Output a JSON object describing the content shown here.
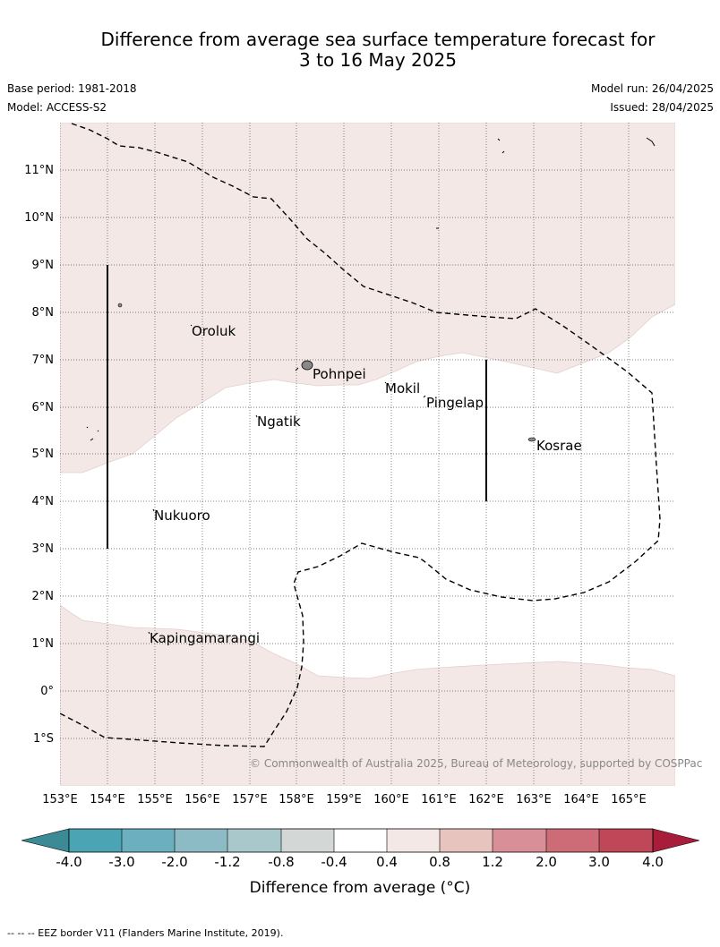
{
  "header": {
    "title_line1": "Difference from average sea surface temperature forecast for",
    "title_line2": "3 to 16 May 2025",
    "base_period": "Base period: 1981-2018",
    "model": "Model: ACCESS-S2",
    "model_run": "Model run: 26/04/2025",
    "issued": "Issued: 28/04/2025"
  },
  "map": {
    "lat_labels": [
      "11°N",
      "10°N",
      "9°N",
      "8°N",
      "7°N",
      "6°N",
      "5°N",
      "4°N",
      "3°N",
      "2°N",
      "1°N",
      "0°",
      "1°S"
    ],
    "lon_labels": [
      "153°E",
      "154°E",
      "155°E",
      "156°E",
      "157°E",
      "158°E",
      "159°E",
      "160°E",
      "161°E",
      "162°E",
      "163°E",
      "164°E",
      "165°E"
    ],
    "places": [
      "Oroluk",
      "Pohnpei",
      "Mokil",
      "Pingelap",
      "Ngatik",
      "Kosrae",
      "Nukuoro",
      "Kapingamarangi"
    ],
    "copyright": "© Commonwealth of Australia 2025, Bureau of Meteorology, supported by COSPPac",
    "anomaly_fill_color": "#f4e8e7",
    "land_color": "#888888"
  },
  "colorbar": {
    "tick_labels": [
      "-4.0",
      "-3.0",
      "-2.0",
      "-1.2",
      "-0.8",
      "-0.4",
      "0.4",
      "0.8",
      "1.2",
      "2.0",
      "3.0",
      "4.0"
    ],
    "colors": [
      "#3b8a96",
      "#4aa4b4",
      "#6cb0c0",
      "#8cbac5",
      "#a9c8cc",
      "#d3d7d6",
      "#ffffff",
      "#f4e8e7",
      "#e8c4bf",
      "#d98f97",
      "#cd6b77",
      "#c04757",
      "#a81d3a"
    ],
    "label": "Difference from average (°C)"
  },
  "footer": {
    "eez_legend": "--  --  -- EEZ border V11 (Flanders Marine Institute, 2019)."
  }
}
